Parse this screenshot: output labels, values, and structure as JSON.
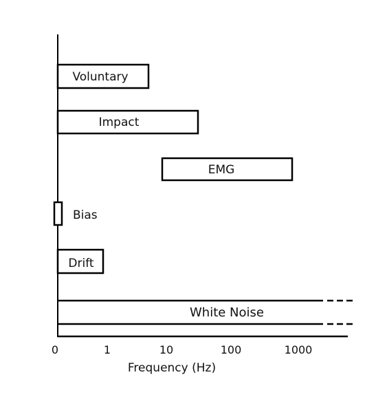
{
  "chart_data": {
    "type": "frequency-range-diagram",
    "xlabel": "Frequency (Hz)",
    "x_scale": "log",
    "x_ticks": [
      "0",
      "1",
      "10",
      "100",
      "1000"
    ],
    "grid": false,
    "bands": [
      {
        "label": "Voluntary",
        "min_hz": 0,
        "max_hz": 5
      },
      {
        "label": "Impact",
        "min_hz": 0,
        "max_hz": 30
      },
      {
        "label": "EMG",
        "min_hz": 8,
        "max_hz": 800
      },
      {
        "label": "Bias",
        "min_hz": 0,
        "max_hz": 0
      },
      {
        "label": "Drift",
        "min_hz": 0,
        "max_hz": 1
      },
      {
        "label": "White Noise",
        "min_hz": 0,
        "max_hz": "unbounded"
      }
    ]
  },
  "colors": {
    "stroke": "#000000",
    "background": "#ffffff"
  }
}
